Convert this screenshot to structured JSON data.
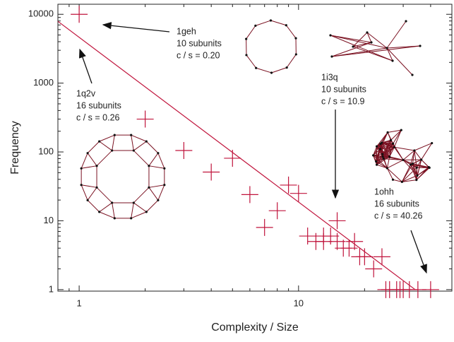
{
  "chart_data": {
    "type": "scatter",
    "x_label": "Complexity / Size",
    "y_label": "Frequency",
    "log_x": true,
    "log_y": true,
    "xlim": [
      0.8,
      50
    ],
    "ylim": [
      0.95,
      14000
    ],
    "xticks": [
      1,
      10
    ],
    "yticks": [
      1,
      10,
      100,
      1000,
      10000
    ],
    "series": [
      {
        "type": "scatter",
        "color": "#c0143c",
        "x": [
          1,
          2,
          3,
          4,
          5,
          6,
          7,
          8,
          9,
          10,
          11,
          12,
          13,
          13,
          14,
          15,
          15,
          16,
          17,
          18,
          19,
          20,
          22,
          24,
          25,
          26,
          28,
          29,
          30,
          32,
          35,
          40
        ],
        "values": [
          10000,
          300,
          105,
          51,
          81,
          24,
          8,
          14,
          33,
          25,
          6,
          5,
          5,
          6,
          6,
          10,
          5,
          4,
          4,
          5,
          3,
          3,
          2,
          3,
          1,
          1,
          1,
          1,
          1,
          1,
          1,
          1
        ]
      },
      {
        "type": "line",
        "color": "#c0143c",
        "x": [
          0.8,
          34
        ],
        "values": [
          7900,
          1
        ]
      }
    ],
    "annotations": [
      {
        "lines": [
          "1geh",
          "10 subunits",
          "c / s = 0.20"
        ]
      },
      {
        "lines": [
          "1q2v",
          "16 subunits",
          "c / s = 0.26"
        ]
      },
      {
        "lines": [
          "1i3q",
          "10 subunits",
          "c / s = 10.9"
        ]
      },
      {
        "lines": [
          "1ohh",
          "16 subunits",
          "c / s = 40.26"
        ]
      }
    ]
  }
}
